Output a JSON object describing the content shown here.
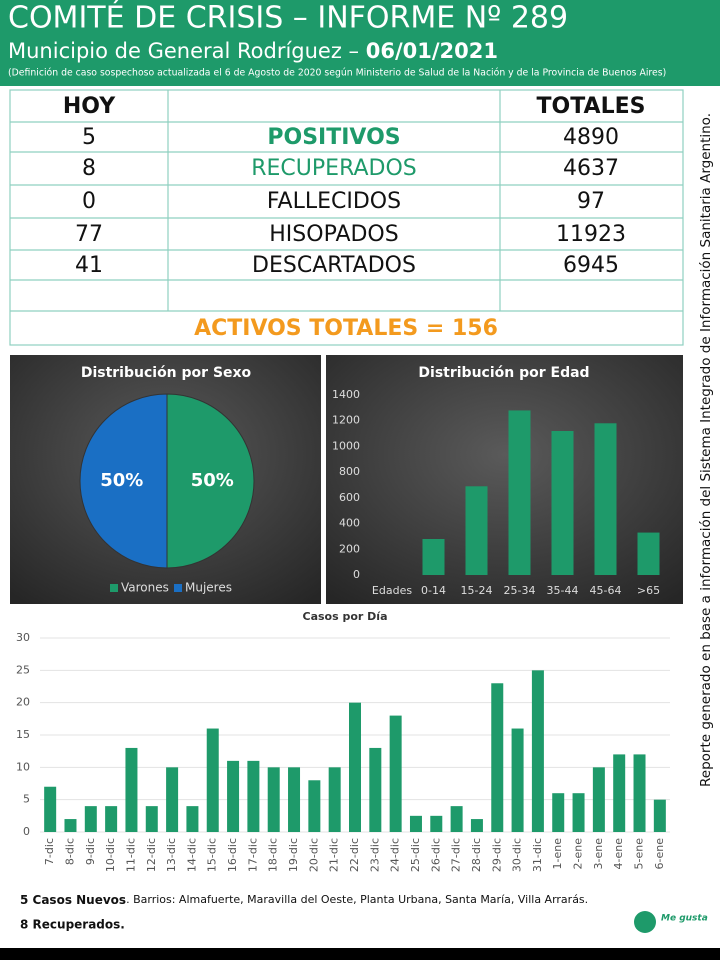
{
  "header": {
    "title": "COMITÉ DE CRISIS – INFORME Nº 289",
    "subtitle": "Municipio de General Rodríguez – ",
    "date": "06/01/2021",
    "note": "(Definición de caso sospechoso actualizada el 6 de Agosto de 2020 según Ministerio de Salud de la Nación y de la Provincia de Buenos Aires)"
  },
  "table": {
    "header_today": "HOY",
    "header_totals": "TOTALES",
    "rows": [
      {
        "today": 5,
        "label": "POSITIVOS",
        "total": 4890
      },
      {
        "today": 8,
        "label": "RECUPERADOS",
        "total": 4637
      },
      {
        "today": 0,
        "label": "FALLECIDOS",
        "total": 97
      },
      {
        "today": 77,
        "label": "HISOPADOS",
        "total": 11923
      },
      {
        "today": 41,
        "label": "DESCARTADOS",
        "total": 6945
      }
    ],
    "active": "ACTIVOS TOTALES = 156"
  },
  "side_note": "Reporte generado en base a información del Sistema Integrado de Información Sanitaria Argentino.",
  "chart_data": [
    {
      "type": "pie",
      "title": "Distribución por Sexo",
      "categories": [
        "Varones",
        "Mujeres"
      ],
      "values": [
        50,
        50
      ],
      "value_labels": [
        "50%",
        "50%"
      ],
      "colors": [
        "#1e9a6a",
        "#1a6fc4"
      ],
      "legend": "bottom"
    },
    {
      "type": "bar",
      "title": "Distribución por Edad",
      "xlabel": "Edades",
      "categories": [
        "0-14",
        "15-24",
        "25-34",
        "35-44",
        "45-64",
        ">65"
      ],
      "values": [
        280,
        690,
        1280,
        1120,
        1180,
        330
      ],
      "color": "#1e9a6a",
      "ylim": [
        0,
        1400
      ],
      "yticks": [
        0,
        200,
        400,
        600,
        800,
        1000,
        1200,
        1400
      ],
      "grid": false
    },
    {
      "type": "bar",
      "title": "Casos por Día",
      "categories": [
        "7-dic",
        "8-dic",
        "9-dic",
        "10-dic",
        "11-dic",
        "12-dic",
        "13-dic",
        "14-dic",
        "15-dic",
        "16-dic",
        "17-dic",
        "18-dic",
        "19-dic",
        "20-dic",
        "21-dic",
        "22-dic",
        "23-dic",
        "24-dic",
        "25-dic",
        "26-dic",
        "27-dic",
        "28-dic",
        "29-dic",
        "30-dic",
        "31-dic",
        "1-ene",
        "2-ene",
        "3-ene",
        "4-ene",
        "5-ene",
        "6-ene"
      ],
      "values": [
        7,
        2,
        4,
        4,
        13,
        4,
        10,
        4,
        16,
        11,
        11,
        10,
        10,
        8,
        10,
        20,
        13,
        18,
        2.5,
        2.5,
        4,
        2,
        23,
        16,
        25,
        6,
        6,
        10,
        12,
        12,
        5
      ],
      "color": "#1e9a6a",
      "ylim": [
        0,
        30
      ],
      "yticks": [
        0,
        5,
        10,
        15,
        20,
        25,
        30
      ],
      "grid": true
    }
  ],
  "footer": {
    "new_cases": "5 Casos Nuevos",
    "neighborhoods": ". Barrios: Almafuerte, Maravilla del Oeste, Planta Urbana, Santa María, Villa Arrarás.",
    "recovered": "8 Recuperados.",
    "logo": "Me gusta"
  }
}
